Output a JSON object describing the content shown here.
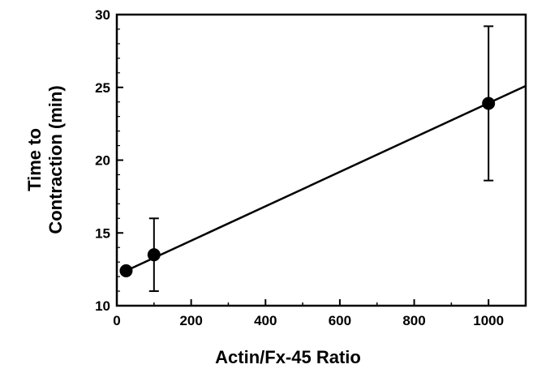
{
  "chart_data": {
    "type": "scatter",
    "xlabel": "Actin/Fx-45  Ratio",
    "ylabel": [
      "Time to",
      "Contraction  (min)"
    ],
    "xlim": [
      0,
      1100
    ],
    "ylim": [
      10,
      30
    ],
    "x_ticks": [
      0,
      200,
      400,
      600,
      800,
      1000
    ],
    "y_ticks": [
      10,
      15,
      20,
      25,
      30
    ],
    "grid": false,
    "series": [
      {
        "points": [
          {
            "x": 25,
            "y": 12.4,
            "err": null
          },
          {
            "x": 100,
            "y": 13.5,
            "err": 2.5
          },
          {
            "x": 1000,
            "y": 23.9,
            "err": 5.3
          }
        ]
      }
    ],
    "fit_line": {
      "x": [
        25,
        1100
      ],
      "y": [
        12.4,
        25.1
      ]
    },
    "colors": {
      "ink": "#000000",
      "background": "#ffffff"
    }
  }
}
